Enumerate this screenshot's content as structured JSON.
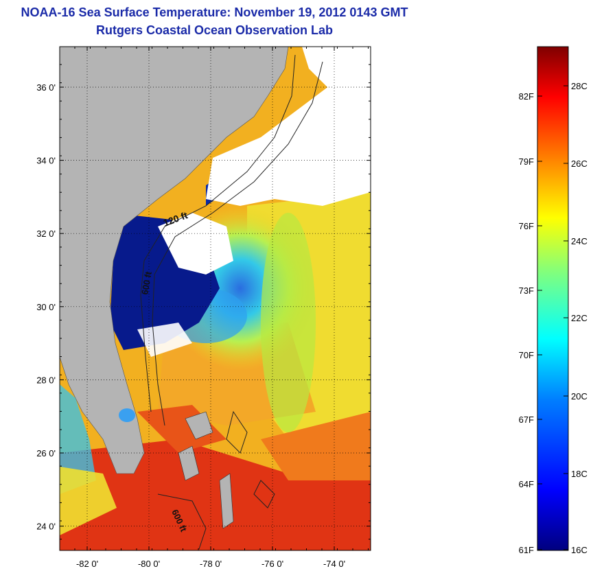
{
  "title": {
    "line1": "NOAA-16 Sea Surface Temperature:  November 19, 2012 0143 GMT",
    "line2": "Rutgers Coastal Ocean Observation Lab"
  },
  "map": {
    "lat_ticks": [
      {
        "value": 36,
        "label": "36 0'"
      },
      {
        "value": 34,
        "label": "34 0'"
      },
      {
        "value": 32,
        "label": "32 0'"
      },
      {
        "value": 30,
        "label": "30 0'"
      },
      {
        "value": 28,
        "label": "28 0'"
      },
      {
        "value": 26,
        "label": "26 0'"
      },
      {
        "value": 24,
        "label": "24 0'"
      }
    ],
    "lon_ticks": [
      {
        "value": -82,
        "label": "-82 0'"
      },
      {
        "value": -80,
        "label": "-80 0'"
      },
      {
        "value": -78,
        "label": "-78 0'"
      },
      {
        "value": -76,
        "label": "-76 0'"
      },
      {
        "value": -74,
        "label": "-74 0'"
      }
    ],
    "contour_labels": [
      "120 ft",
      "600 ft",
      "600 ft"
    ],
    "colors": {
      "land": "#b4b4b4",
      "cloud": "#ffffff",
      "cold_shelf": "#071a8c",
      "warm": "#f07a1c",
      "hot": "#e32a12"
    }
  },
  "colorbar": {
    "f_labels": [
      "82F",
      "79F",
      "76F",
      "73F",
      "70F",
      "67F",
      "64F",
      "61F"
    ],
    "c_labels": [
      "28C",
      "26C",
      "24C",
      "22C",
      "20C",
      "18C",
      "16C"
    ],
    "stops": [
      "#00007f",
      "#0000ff",
      "#007fff",
      "#00ffff",
      "#7fff7f",
      "#ffff00",
      "#ff7f00",
      "#ff0000",
      "#7f0000"
    ]
  }
}
